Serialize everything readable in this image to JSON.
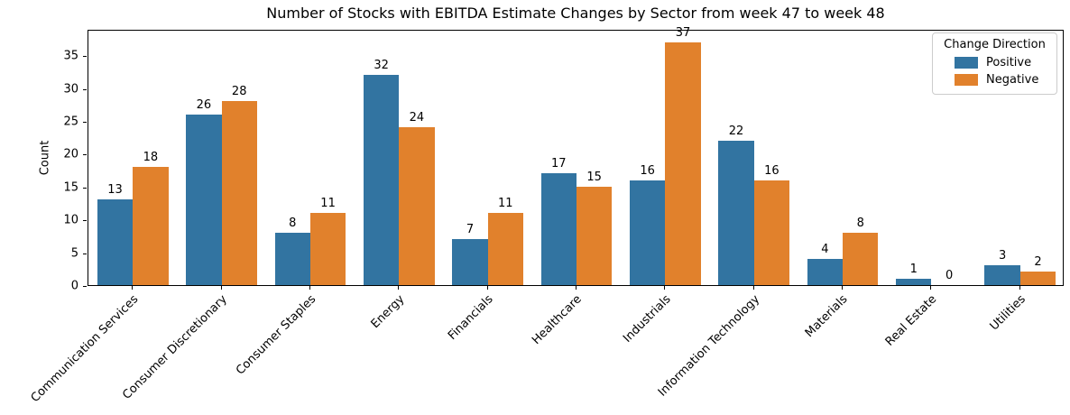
{
  "chart_data": {
    "type": "bar",
    "title": "Number of Stocks with EBITDA Estimate Changes by Sector from week 47 to week 48",
    "xlabel": "",
    "ylabel": "Count",
    "categories": [
      "Communication Services",
      "Consumer Discretionary",
      "Consumer Staples",
      "Energy",
      "Financials",
      "Healthcare",
      "Industrials",
      "Information Technology",
      "Materials",
      "Real Estate",
      "Utilities"
    ],
    "series": [
      {
        "name": "Positive",
        "color": "#3274a1",
        "values": [
          13,
          26,
          8,
          32,
          7,
          17,
          16,
          22,
          4,
          1,
          3
        ]
      },
      {
        "name": "Negative",
        "color": "#e1812c",
        "values": [
          18,
          28,
          11,
          24,
          11,
          15,
          37,
          16,
          8,
          0,
          2
        ]
      }
    ],
    "legend": {
      "title": "Change Direction",
      "position": "upper right"
    },
    "yticks": [
      0,
      5,
      10,
      15,
      20,
      25,
      30,
      35
    ],
    "ylim": [
      0,
      39
    ],
    "grid": false,
    "bar_value_labels": true,
    "x_tick_rotation_deg": 45
  }
}
